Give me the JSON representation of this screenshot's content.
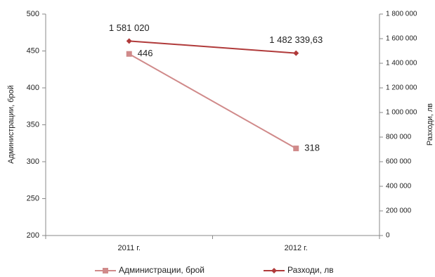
{
  "chart_data": {
    "type": "line",
    "categories": [
      "2011 г.",
      "2012 г."
    ],
    "series": [
      {
        "name": "Администрации, брой",
        "color": "#d08a8a",
        "marker": "square",
        "values": [
          446,
          318
        ]
      },
      {
        "name": "Разходи, лв",
        "color": "#b03a3a",
        "marker": "diamond",
        "axis": "y2",
        "values": [
          1581020,
          1482339.63
        ],
        "value_labels": [
          "1 581 020",
          "1 482 339,63"
        ]
      }
    ],
    "ylabel": "Администрации, брой",
    "y2label": "Разходи, лв",
    "ylim": [
      200,
      500
    ],
    "yticks": [
      200,
      250,
      300,
      350,
      400,
      450,
      500
    ],
    "y2lim": [
      0,
      1800000
    ],
    "y2ticks": [
      0,
      {
        "value": 200000,
        "label": "200 000"
      },
      {
        "value": 400000,
        "label": "400 000"
      },
      {
        "value": 600000,
        "label": "600 000"
      },
      {
        "value": 800000,
        "label": "800 000"
      },
      {
        "value": 1000000,
        "label": "1 000 000"
      },
      {
        "value": 1200000,
        "label": "1 200 000"
      },
      {
        "value": 1400000,
        "label": "1 400 000"
      },
      {
        "value": 1600000,
        "label": "1 600 000"
      },
      {
        "value": 1800000,
        "label": "1 800 000"
      }
    ],
    "legend": "bottom",
    "grid": false
  }
}
